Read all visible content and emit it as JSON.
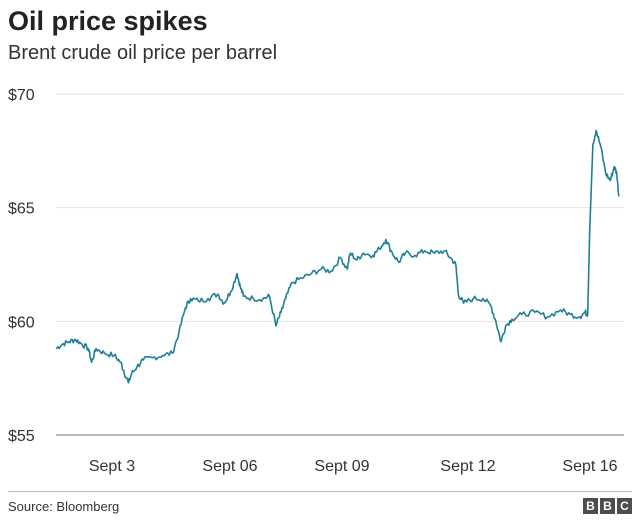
{
  "header": {
    "title": "Oil price spikes",
    "subtitle": "Brent crude oil price per barrel"
  },
  "footer": {
    "source": "Source: Bloomberg",
    "logo_letters": [
      "B",
      "B",
      "C"
    ]
  },
  "colors": {
    "line": "#1f7f96",
    "grid": "#e3e3e3",
    "baseline": "#b8b8b8"
  },
  "chart_data": {
    "type": "line",
    "ylim": [
      55,
      70
    ],
    "xlim": [
      "Sept 2",
      "Sept 16"
    ],
    "grid": true,
    "y_ticks": [
      {
        "value": 70,
        "label": "$70"
      },
      {
        "value": 65,
        "label": "$65"
      },
      {
        "value": 60,
        "label": "$60"
      },
      {
        "value": 55,
        "label": "$55"
      }
    ],
    "x_ticks": [
      {
        "label": "Sept 3"
      },
      {
        "label": "Sept 06"
      },
      {
        "label": "Sept 09"
      },
      {
        "label": "Sept 12"
      },
      {
        "label": "Sept 16"
      }
    ],
    "series": [
      {
        "points": [
          [
            0.0,
            58.8
          ],
          [
            0.1,
            59.0
          ],
          [
            0.2,
            59.1
          ],
          [
            0.3,
            59.2
          ],
          [
            0.4,
            59.0
          ],
          [
            0.5,
            58.8
          ],
          [
            0.55,
            58.2
          ],
          [
            0.62,
            58.8
          ],
          [
            0.75,
            58.6
          ],
          [
            0.9,
            58.5
          ],
          [
            1.0,
            58.2
          ],
          [
            1.05,
            57.8
          ],
          [
            1.12,
            57.3
          ],
          [
            1.17,
            57.7
          ],
          [
            1.25,
            58.0
          ],
          [
            1.35,
            58.3
          ],
          [
            1.5,
            58.4
          ],
          [
            1.65,
            58.5
          ],
          [
            1.8,
            58.6
          ],
          [
            1.9,
            59.5
          ],
          [
            2.0,
            60.6
          ],
          [
            2.08,
            61.0
          ],
          [
            2.2,
            60.9
          ],
          [
            2.35,
            61.0
          ],
          [
            2.5,
            61.2
          ],
          [
            2.6,
            60.8
          ],
          [
            2.7,
            61.3
          ],
          [
            2.8,
            62.1
          ],
          [
            2.85,
            61.5
          ],
          [
            2.9,
            61.1
          ],
          [
            3.05,
            61.0
          ],
          [
            3.2,
            61.0
          ],
          [
            3.3,
            61.1
          ],
          [
            3.4,
            59.8
          ],
          [
            3.48,
            60.4
          ],
          [
            3.55,
            61.0
          ],
          [
            3.65,
            61.7
          ],
          [
            3.8,
            61.9
          ],
          [
            3.95,
            62.1
          ],
          [
            4.1,
            62.3
          ],
          [
            4.25,
            62.2
          ],
          [
            4.4,
            62.8
          ],
          [
            4.5,
            62.3
          ],
          [
            4.55,
            63.0
          ],
          [
            4.65,
            62.7
          ],
          [
            4.75,
            63.0
          ],
          [
            4.9,
            62.9
          ],
          [
            5.0,
            63.2
          ],
          [
            5.1,
            63.6
          ],
          [
            5.2,
            63.0
          ],
          [
            5.3,
            62.6
          ],
          [
            5.4,
            63.0
          ],
          [
            5.55,
            62.9
          ],
          [
            5.7,
            63.1
          ],
          [
            5.85,
            63.0
          ],
          [
            6.0,
            63.1
          ],
          [
            6.1,
            62.8
          ],
          [
            6.18,
            62.5
          ],
          [
            6.22,
            61.2
          ],
          [
            6.3,
            60.8
          ],
          [
            6.45,
            61.0
          ],
          [
            6.6,
            61.0
          ],
          [
            6.72,
            60.7
          ],
          [
            6.8,
            60.0
          ],
          [
            6.88,
            59.1
          ],
          [
            6.95,
            59.8
          ],
          [
            7.05,
            60.1
          ],
          [
            7.2,
            60.3
          ],
          [
            7.4,
            60.4
          ],
          [
            7.6,
            60.2
          ],
          [
            7.8,
            60.5
          ],
          [
            7.95,
            60.3
          ],
          [
            8.1,
            60.2
          ],
          [
            8.18,
            60.4
          ],
          [
            8.22,
            60.3
          ],
          [
            8.25,
            64.0
          ],
          [
            8.3,
            67.8
          ],
          [
            8.35,
            68.4
          ],
          [
            8.42,
            67.7
          ],
          [
            8.5,
            66.5
          ],
          [
            8.57,
            66.2
          ],
          [
            8.63,
            66.8
          ],
          [
            8.67,
            66.5
          ],
          [
            8.7,
            65.5
          ]
        ]
      }
    ]
  }
}
